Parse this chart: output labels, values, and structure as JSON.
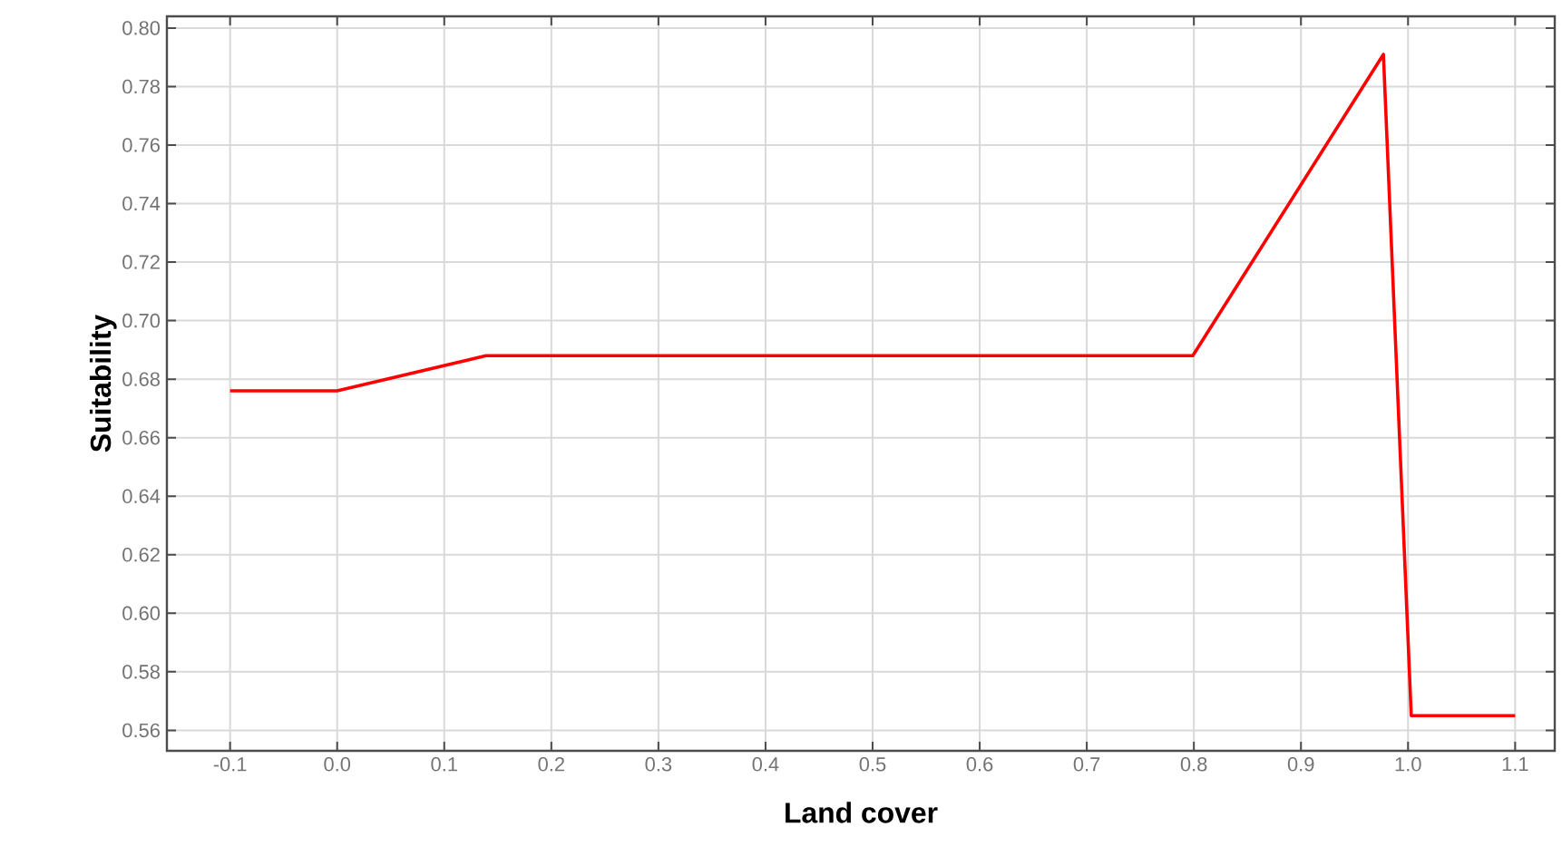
{
  "chart_data": {
    "type": "line",
    "xlabel": "Land cover",
    "ylabel": "Suitability",
    "xlim": [
      -0.159,
      1.137
    ],
    "ylim": [
      0.553,
      0.804
    ],
    "xticks": [
      -0.1,
      {
        "value": 0,
        "label": "0.0"
      },
      0.1,
      0.2,
      0.3,
      0.4,
      0.5,
      0.6,
      0.7,
      0.8,
      0.9,
      {
        "value": 1,
        "label": "1.0"
      },
      1.1
    ],
    "yticks": [
      0.56,
      0.58,
      {
        "value": 0.6,
        "label": "0.60"
      },
      0.62,
      0.64,
      0.66,
      0.68,
      {
        "value": 0.7,
        "label": "0.70"
      },
      0.72,
      0.74,
      0.76,
      0.78,
      {
        "value": 0.8,
        "label": "0.80"
      }
    ],
    "grid": true,
    "marker": "none",
    "line_style": "solid",
    "series": [
      {
        "color": "#ff0000",
        "x": [
          -0.1,
          0.0,
          0.139,
          0.799,
          0.977,
          1.003,
          1.1
        ],
        "values": [
          0.676,
          0.676,
          0.688,
          0.688,
          0.791,
          0.565,
          0.565
        ]
      }
    ]
  }
}
